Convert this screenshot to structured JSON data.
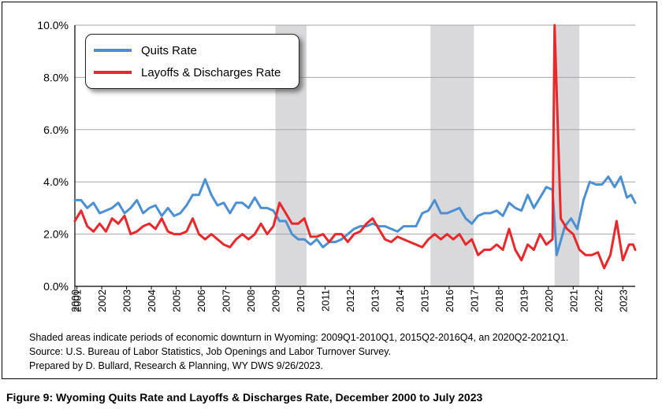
{
  "chart_data": {
    "type": "line",
    "title": "",
    "xlabel": "",
    "ylabel": "",
    "ylim": [
      0,
      10
    ],
    "xlim": [
      "2000-12",
      "2023-07"
    ],
    "y_ticks": [
      "0.0%",
      "2.0%",
      "4.0%",
      "6.0%",
      "8.0%",
      "10.0%"
    ],
    "x_ticks": [
      "2000",
      "2001",
      "2002",
      "2003",
      "2004",
      "2005",
      "2006",
      "2007",
      "2008",
      "2009",
      "2010",
      "2011",
      "2012",
      "2013",
      "2014",
      "2015",
      "2016",
      "2017",
      "2018",
      "2019",
      "2020",
      "2021",
      "2022",
      "2023"
    ],
    "grid": true,
    "legend_position": "top-left",
    "shaded_periods": [
      {
        "start": "2009-01",
        "end": "2010-03"
      },
      {
        "start": "2015-04",
        "end": "2016-12"
      },
      {
        "start": "2020-04",
        "end": "2021-03"
      }
    ],
    "series": [
      {
        "name": "Quits Rate",
        "color": "#4a90d2",
        "points": [
          [
            "2000-12",
            3.3
          ],
          [
            "2001-03",
            3.3
          ],
          [
            "2001-06",
            3.0
          ],
          [
            "2001-09",
            3.2
          ],
          [
            "2001-12",
            2.8
          ],
          [
            "2002-03",
            2.9
          ],
          [
            "2002-06",
            3.0
          ],
          [
            "2002-09",
            3.2
          ],
          [
            "2002-12",
            2.8
          ],
          [
            "2003-03",
            3.0
          ],
          [
            "2003-06",
            3.3
          ],
          [
            "2003-09",
            2.8
          ],
          [
            "2003-12",
            3.0
          ],
          [
            "2004-03",
            3.1
          ],
          [
            "2004-06",
            2.7
          ],
          [
            "2004-09",
            3.0
          ],
          [
            "2004-12",
            2.7
          ],
          [
            "2005-03",
            2.8
          ],
          [
            "2005-06",
            3.1
          ],
          [
            "2005-09",
            3.5
          ],
          [
            "2005-12",
            3.5
          ],
          [
            "2006-03",
            4.1
          ],
          [
            "2006-06",
            3.5
          ],
          [
            "2006-09",
            3.1
          ],
          [
            "2006-12",
            3.2
          ],
          [
            "2007-03",
            2.8
          ],
          [
            "2007-06",
            3.2
          ],
          [
            "2007-09",
            3.2
          ],
          [
            "2007-12",
            3.0
          ],
          [
            "2008-03",
            3.4
          ],
          [
            "2008-06",
            3.0
          ],
          [
            "2008-09",
            3.0
          ],
          [
            "2008-12",
            2.9
          ],
          [
            "2009-03",
            2.5
          ],
          [
            "2009-06",
            2.5
          ],
          [
            "2009-09",
            2.0
          ],
          [
            "2009-12",
            1.8
          ],
          [
            "2010-03",
            1.8
          ],
          [
            "2010-06",
            1.6
          ],
          [
            "2010-09",
            1.8
          ],
          [
            "2010-12",
            1.5
          ],
          [
            "2011-03",
            1.7
          ],
          [
            "2011-06",
            1.7
          ],
          [
            "2011-09",
            1.8
          ],
          [
            "2011-12",
            2.0
          ],
          [
            "2012-03",
            2.2
          ],
          [
            "2012-06",
            2.3
          ],
          [
            "2012-09",
            2.3
          ],
          [
            "2012-12",
            2.4
          ],
          [
            "2013-03",
            2.3
          ],
          [
            "2013-06",
            2.3
          ],
          [
            "2013-09",
            2.2
          ],
          [
            "2013-12",
            2.1
          ],
          [
            "2014-03",
            2.3
          ],
          [
            "2014-06",
            2.3
          ],
          [
            "2014-09",
            2.3
          ],
          [
            "2014-12",
            2.8
          ],
          [
            "2015-03",
            2.9
          ],
          [
            "2015-06",
            3.3
          ],
          [
            "2015-09",
            2.8
          ],
          [
            "2015-12",
            2.8
          ],
          [
            "2016-03",
            2.9
          ],
          [
            "2016-06",
            3.0
          ],
          [
            "2016-09",
            2.6
          ],
          [
            "2016-12",
            2.4
          ],
          [
            "2017-03",
            2.7
          ],
          [
            "2017-06",
            2.8
          ],
          [
            "2017-09",
            2.8
          ],
          [
            "2017-12",
            2.9
          ],
          [
            "2018-03",
            2.7
          ],
          [
            "2018-06",
            3.2
          ],
          [
            "2018-09",
            3.0
          ],
          [
            "2018-12",
            2.9
          ],
          [
            "2019-03",
            3.5
          ],
          [
            "2019-06",
            3.0
          ],
          [
            "2019-09",
            3.4
          ],
          [
            "2019-12",
            3.8
          ],
          [
            "2020-03",
            3.7
          ],
          [
            "2020-05",
            1.2
          ],
          [
            "2020-09",
            2.3
          ],
          [
            "2020-12",
            2.6
          ],
          [
            "2021-03",
            2.2
          ],
          [
            "2021-06",
            3.3
          ],
          [
            "2021-09",
            4.0
          ],
          [
            "2021-12",
            3.9
          ],
          [
            "2022-03",
            3.9
          ],
          [
            "2022-06",
            4.2
          ],
          [
            "2022-09",
            3.8
          ],
          [
            "2022-12",
            4.2
          ],
          [
            "2023-03",
            3.4
          ],
          [
            "2023-05",
            3.5
          ],
          [
            "2023-07",
            3.2
          ]
        ]
      },
      {
        "name": "Layoffs & Discharges Rate",
        "color": "#e8282b",
        "points": [
          [
            "2000-12",
            2.5
          ],
          [
            "2001-03",
            2.9
          ],
          [
            "2001-06",
            2.3
          ],
          [
            "2001-09",
            2.1
          ],
          [
            "2001-12",
            2.4
          ],
          [
            "2002-03",
            2.1
          ],
          [
            "2002-06",
            2.6
          ],
          [
            "2002-09",
            2.4
          ],
          [
            "2002-12",
            2.7
          ],
          [
            "2003-03",
            2.0
          ],
          [
            "2003-06",
            2.1
          ],
          [
            "2003-09",
            2.3
          ],
          [
            "2003-12",
            2.4
          ],
          [
            "2004-03",
            2.2
          ],
          [
            "2004-06",
            2.6
          ],
          [
            "2004-09",
            2.1
          ],
          [
            "2004-12",
            2.0
          ],
          [
            "2005-03",
            2.0
          ],
          [
            "2005-06",
            2.1
          ],
          [
            "2005-09",
            2.6
          ],
          [
            "2005-12",
            2.0
          ],
          [
            "2006-03",
            1.8
          ],
          [
            "2006-06",
            2.0
          ],
          [
            "2006-09",
            1.8
          ],
          [
            "2006-12",
            1.6
          ],
          [
            "2007-03",
            1.5
          ],
          [
            "2007-06",
            1.8
          ],
          [
            "2007-09",
            2.0
          ],
          [
            "2007-12",
            1.8
          ],
          [
            "2008-03",
            2.0
          ],
          [
            "2008-06",
            2.4
          ],
          [
            "2008-09",
            2.0
          ],
          [
            "2008-12",
            2.3
          ],
          [
            "2009-03",
            3.2
          ],
          [
            "2009-06",
            2.8
          ],
          [
            "2009-09",
            2.4
          ],
          [
            "2009-12",
            2.4
          ],
          [
            "2010-03",
            2.6
          ],
          [
            "2010-06",
            1.9
          ],
          [
            "2010-09",
            1.9
          ],
          [
            "2010-12",
            2.0
          ],
          [
            "2011-03",
            1.7
          ],
          [
            "2011-06",
            2.0
          ],
          [
            "2011-09",
            2.0
          ],
          [
            "2011-12",
            1.7
          ],
          [
            "2012-03",
            2.0
          ],
          [
            "2012-06",
            2.1
          ],
          [
            "2012-09",
            2.4
          ],
          [
            "2012-12",
            2.6
          ],
          [
            "2013-03",
            2.2
          ],
          [
            "2013-06",
            1.8
          ],
          [
            "2013-09",
            1.7
          ],
          [
            "2013-12",
            1.9
          ],
          [
            "2014-03",
            1.8
          ],
          [
            "2014-06",
            1.7
          ],
          [
            "2014-09",
            1.6
          ],
          [
            "2014-12",
            1.5
          ],
          [
            "2015-03",
            1.8
          ],
          [
            "2015-06",
            2.0
          ],
          [
            "2015-09",
            1.8
          ],
          [
            "2015-12",
            2.0
          ],
          [
            "2016-03",
            1.8
          ],
          [
            "2016-06",
            2.0
          ],
          [
            "2016-09",
            1.6
          ],
          [
            "2016-12",
            1.8
          ],
          [
            "2017-03",
            1.2
          ],
          [
            "2017-06",
            1.4
          ],
          [
            "2017-09",
            1.4
          ],
          [
            "2017-12",
            1.6
          ],
          [
            "2018-03",
            1.4
          ],
          [
            "2018-06",
            2.2
          ],
          [
            "2018-09",
            1.4
          ],
          [
            "2018-12",
            1.0
          ],
          [
            "2019-03",
            1.6
          ],
          [
            "2019-06",
            1.4
          ],
          [
            "2019-09",
            2.0
          ],
          [
            "2019-12",
            1.6
          ],
          [
            "2020-03",
            1.8
          ],
          [
            "2020-04",
            10.0
          ],
          [
            "2020-07",
            2.6
          ],
          [
            "2020-10",
            2.2
          ],
          [
            "2021-01",
            2.0
          ],
          [
            "2021-04",
            1.4
          ],
          [
            "2021-07",
            1.2
          ],
          [
            "2021-10",
            1.2
          ],
          [
            "2022-01",
            1.3
          ],
          [
            "2022-04",
            0.7
          ],
          [
            "2022-07",
            1.2
          ],
          [
            "2022-10",
            2.5
          ],
          [
            "2023-01",
            1.0
          ],
          [
            "2023-04",
            1.6
          ],
          [
            "2023-06",
            1.6
          ],
          [
            "2023-07",
            1.4
          ]
        ]
      }
    ]
  },
  "notes": {
    "line1": "Shaded areas indicate periods of economic downturn in Wyoming: 2009Q1-2010Q1, 2015Q2-2016Q4, an 2020Q2-2021Q1.",
    "line2": "Source: U.S. Bureau of Labor Statistics, Job Openings and Labor Turnover Survey.",
    "line3": "Prepared by D. Bullard, Research & Planning, WY DWS 9/26/2023."
  },
  "caption": "Figure 9: Wyoming Quits Rate and Layoffs & Discharges Rate, December 2000 to July 2023"
}
